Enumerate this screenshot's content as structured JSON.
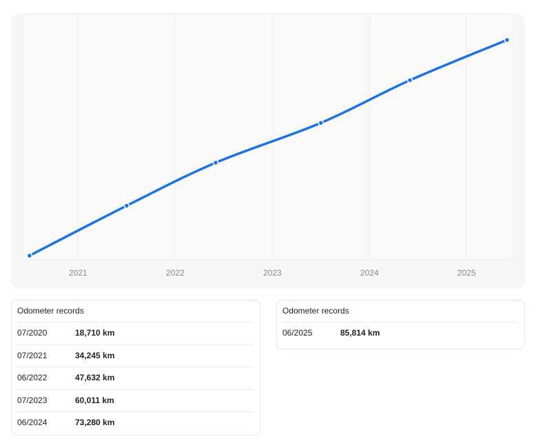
{
  "chart_data": {
    "type": "line",
    "x": [
      "07/2020",
      "07/2021",
      "06/2022",
      "07/2023",
      "06/2024",
      "06/2025"
    ],
    "values": [
      18710,
      34245,
      47632,
      60011,
      73280,
      85814
    ],
    "color": "#1a73e0",
    "xlim": [
      2020.43,
      2025.48
    ],
    "xticks": [
      2021,
      2022,
      2023,
      2024,
      2025
    ],
    "ylim": [
      17210,
      93960
    ],
    "grid": true
  },
  "record_cards": [
    {
      "title": "Odometer records",
      "rows": [
        [
          "07/2020",
          "18,710 km"
        ],
        [
          "07/2021",
          "34,245 km"
        ],
        [
          "06/2022",
          "47,632 km"
        ],
        [
          "07/2023",
          "60,011 km"
        ],
        [
          "06/2024",
          "73,280 km"
        ]
      ]
    },
    {
      "title": "Odometer records",
      "rows": [
        [
          "06/2025",
          "85,814 km"
        ]
      ]
    }
  ]
}
